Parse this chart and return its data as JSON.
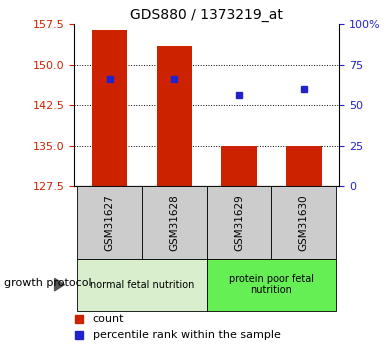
{
  "title": "GDS880 / 1373219_at",
  "samples": [
    "GSM31627",
    "GSM31628",
    "GSM31629",
    "GSM31630"
  ],
  "bar_values": [
    156.5,
    153.5,
    135.0,
    135.0
  ],
  "bar_bottom": 127.5,
  "percentile_pct": [
    66,
    66,
    56,
    60
  ],
  "ylim_left": [
    127.5,
    157.5
  ],
  "yticks_left": [
    127.5,
    135.0,
    142.5,
    150.0,
    157.5
  ],
  "yticks_right": [
    0,
    25,
    50,
    75,
    100
  ],
  "bar_color": "#cc2200",
  "dot_color": "#2222cc",
  "group_labels": [
    "normal fetal nutrition",
    "protein poor fetal\nnutrition"
  ],
  "group_ranges": [
    [
      0,
      2
    ],
    [
      2,
      4
    ]
  ],
  "group_colors": [
    "#d8eecc",
    "#66ee55"
  ],
  "xlabel_text": "growth protocol",
  "tick_label_color_left": "#cc2200",
  "tick_label_color_right": "#2222cc"
}
